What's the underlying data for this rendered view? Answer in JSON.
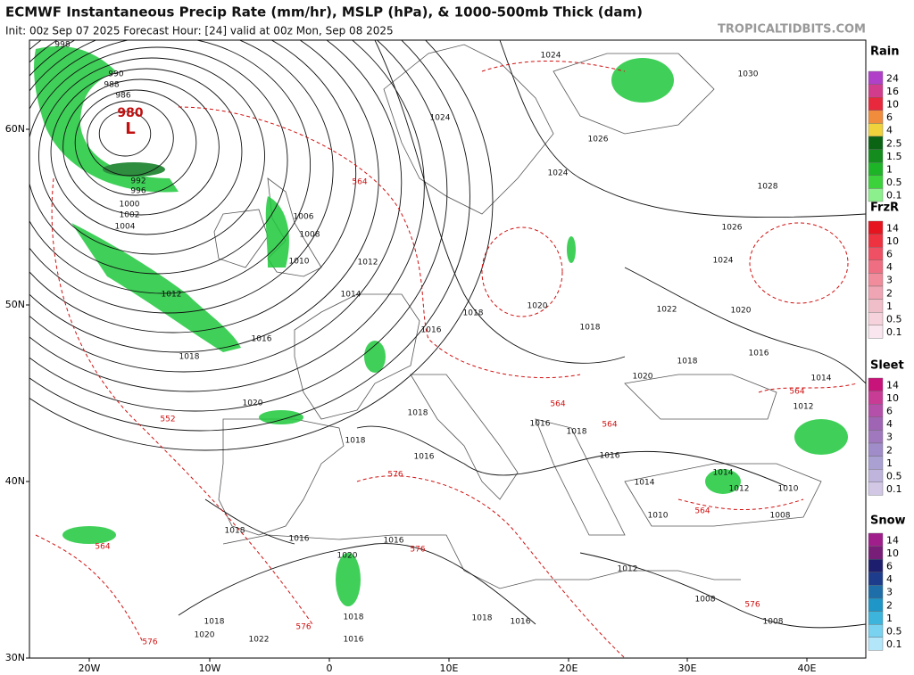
{
  "header": {
    "title": "ECMWF Instantaneous Precip Rate (mm/hr), MSLP (hPa), & 1000-500mb Thick (dam)",
    "subtitle": "Init: 00z Sep 07 2025   Forecast Hour: [24]   valid at 00z Mon, Sep 08 2025",
    "site": "TROPICALTIDBITS.COM"
  },
  "map": {
    "lat_labels": [
      "60N",
      "50N",
      "40N",
      "30N"
    ],
    "lon_labels": [
      "20W",
      "10W",
      "0",
      "10E",
      "20E",
      "30E",
      "40E"
    ],
    "low": {
      "pressure": "980",
      "symbol": "L"
    },
    "isobar_labels": [
      "998",
      "990",
      "988",
      "986",
      "992",
      "996",
      "1000",
      "1002",
      "1004",
      "1006",
      "1008",
      "1010",
      "1012",
      "1012",
      "1014",
      "1016",
      "1018",
      "1020",
      "1024",
      "1024",
      "1026",
      "1024",
      "1028",
      "1030",
      "1026",
      "1024",
      "1022",
      "1020",
      "1018",
      "1020",
      "1016",
      "1018",
      "1016",
      "1018",
      "1020",
      "1014",
      "1012",
      "1018",
      "1018",
      "1016",
      "1016",
      "1018",
      "1016",
      "1014",
      "1014",
      "1012",
      "1010",
      "1010",
      "1008",
      "1018",
      "1016",
      "1016",
      "1020",
      "1012",
      "1008",
      "1008",
      "1018",
      "1016",
      "1018",
      "1018",
      "1020",
      "1022",
      "1016"
    ],
    "thickness_labels": [
      "564",
      "552",
      "564",
      "576",
      "576",
      "576",
      "576",
      "564",
      "564",
      "564",
      "564",
      "576"
    ]
  },
  "legends": [
    {
      "title": "Rain",
      "labels": [
        24,
        16,
        10,
        6,
        4,
        2.5,
        1.5,
        1,
        0.5,
        0.1
      ],
      "colors": [
        "#b040c8",
        "#d23c8c",
        "#e8283c",
        "#f08c3c",
        "#f0d23c",
        "#0a6414",
        "#148c1e",
        "#1eb428",
        "#3cd23c",
        "#8cf08c"
      ]
    },
    {
      "title": "FrzR",
      "labels": [
        14,
        10,
        6,
        4,
        3,
        2,
        1,
        0.5,
        0.1
      ],
      "colors": [
        "#e6141e",
        "#ee3240",
        "#f05064",
        "#f06e82",
        "#f08c9b",
        "#f0a5b4",
        "#f0bec8",
        "#f5d2dc",
        "#fae6ee"
      ]
    },
    {
      "title": "Sleet",
      "labels": [
        14,
        10,
        6,
        4,
        3,
        2,
        1,
        0.5,
        0.1
      ],
      "colors": [
        "#c8147a",
        "#c83c96",
        "#b450aa",
        "#a064b4",
        "#a078be",
        "#a08cc8",
        "#aaa0d2",
        "#beb4dc",
        "#d2c8e6"
      ]
    },
    {
      "title": "Snow",
      "labels": [
        14,
        10,
        6,
        4,
        3,
        2,
        1,
        0.5,
        0.1
      ],
      "colors": [
        "#a01e8c",
        "#781e78",
        "#1e1e6e",
        "#1e3c8c",
        "#1e6eaa",
        "#1e96c8",
        "#3cb4dc",
        "#78d2f0",
        "#b4e6fa"
      ]
    }
  ]
}
